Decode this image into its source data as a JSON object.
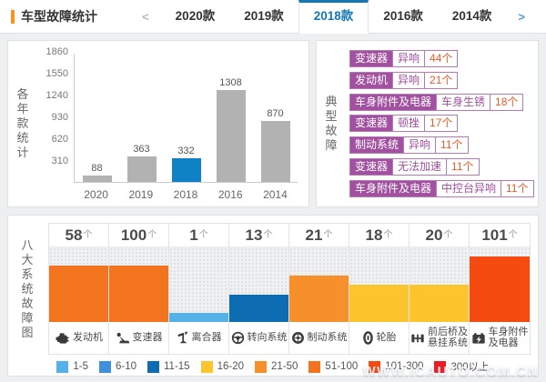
{
  "header": {
    "title": "车型故障统计",
    "prev_label": "<",
    "next_label": ">",
    "accent_color": "#1578b5",
    "tabs": [
      {
        "key": "2020",
        "label": "2020款",
        "active": false
      },
      {
        "key": "2019",
        "label": "2019款",
        "active": false
      },
      {
        "key": "2018",
        "label": "2018款",
        "active": true
      },
      {
        "key": "2016",
        "label": "2016款",
        "active": false
      },
      {
        "key": "2014",
        "label": "2014款",
        "active": false
      }
    ]
  },
  "yearly_panel": {
    "side_label": "各年款统计",
    "y_ticks": [
      310,
      620,
      930,
      1240,
      1550,
      1860
    ],
    "y_max": 1860,
    "bar_color": "#b2b2b2",
    "highlight_color": "#0e82c4",
    "bars": [
      {
        "year": "2020",
        "value": 88,
        "highlight": false
      },
      {
        "year": "2019",
        "value": 363,
        "highlight": false
      },
      {
        "year": "2018",
        "value": 332,
        "highlight": true
      },
      {
        "year": "2016",
        "value": 1308,
        "highlight": false
      },
      {
        "year": "2014",
        "value": 870,
        "highlight": false
      }
    ]
  },
  "typical_faults": {
    "side_label": "典型故障",
    "items": [
      {
        "system": "变速器",
        "fault": "异响",
        "count": "44个"
      },
      {
        "system": "发动机",
        "fault": "异响",
        "count": "21个"
      },
      {
        "system": "车身附件及电器",
        "fault": "车身生锈",
        "count": "18个"
      },
      {
        "system": "变速器",
        "fault": "顿挫",
        "count": "17个"
      },
      {
        "system": "制动系统",
        "fault": "异响",
        "count": "11个"
      },
      {
        "system": "变速器",
        "fault": "无法加速",
        "count": "11个"
      },
      {
        "system": "车身附件及电器",
        "fault": "中控台异响",
        "count": "11个"
      }
    ]
  },
  "systems_panel": {
    "side_label": "八大系统故障图",
    "unit": "个",
    "columns": [
      {
        "key": "engine",
        "count": 58,
        "bucket": "51-100",
        "icon": "engine-icon",
        "label_lines": [
          "发动机"
        ]
      },
      {
        "key": "transmission",
        "count": 100,
        "bucket": "51-100",
        "icon": "gear-shifter-icon",
        "label_lines": [
          "变速器"
        ]
      },
      {
        "key": "clutch",
        "count": 1,
        "bucket": "1-5",
        "icon": "clutch-pedal-icon",
        "label_lines": [
          "离合器"
        ]
      },
      {
        "key": "steering",
        "count": 13,
        "bucket": "11-15",
        "icon": "steering-wheel-icon",
        "label_lines": [
          "转向系统"
        ]
      },
      {
        "key": "braking",
        "count": 21,
        "bucket": "21-50",
        "icon": "brake-disc-icon",
        "label_lines": [
          "制动系统"
        ]
      },
      {
        "key": "tire",
        "count": 18,
        "bucket": "16-20",
        "icon": "tire-icon",
        "label_lines": [
          "轮胎"
        ]
      },
      {
        "key": "axle-suspension",
        "count": 20,
        "bucket": "16-20",
        "icon": "axle-suspension-icon",
        "label_lines": [
          "前后桥及",
          "悬挂系统"
        ]
      },
      {
        "key": "body-electrics",
        "count": 101,
        "bucket": "101-300",
        "icon": "battery-icon",
        "label_lines": [
          "车身附件",
          "及电器"
        ]
      }
    ],
    "legend": [
      {
        "label": "1-5",
        "color": "#55b2e8",
        "height": 10
      },
      {
        "label": "6-10",
        "color": "#3f8fdc",
        "height": 20
      },
      {
        "label": "11-15",
        "color": "#0d6cb2",
        "height": 30
      },
      {
        "label": "16-20",
        "color": "#fcc42d",
        "height": 41
      },
      {
        "label": "21-50",
        "color": "#f7902a",
        "height": 51
      },
      {
        "label": "51-100",
        "color": "#f2741f",
        "height": 62
      },
      {
        "label": "101-300",
        "color": "#f54a10",
        "height": 72
      },
      {
        "label": "300以上",
        "color": "#ec1c24",
        "height": 82
      }
    ]
  },
  "watermark": "WWW.ICAUTO.COM.CN",
  "chart_data": [
    {
      "type": "bar",
      "title": "各年款统计",
      "categories": [
        "2020",
        "2019",
        "2018",
        "2016",
        "2014"
      ],
      "values": [
        88,
        363,
        332,
        1308,
        870
      ],
      "highlighted_category": "2018",
      "xlabel": "",
      "ylabel": "",
      "yticks": [
        310,
        620,
        930,
        1240,
        1550,
        1860
      ],
      "ylim": [
        0,
        1860
      ],
      "grid": false,
      "bar_colors": [
        "#b2b2b2",
        "#b2b2b2",
        "#0e82c4",
        "#b2b2b2",
        "#b2b2b2"
      ]
    },
    {
      "type": "bar",
      "title": "八大系统故障图",
      "categories": [
        "发动机",
        "变速器",
        "离合器",
        "转向系统",
        "制动系统",
        "轮胎",
        "前后桥及悬挂系统",
        "车身附件及电器"
      ],
      "values": [
        58,
        100,
        1,
        13,
        21,
        18,
        20,
        101
      ],
      "value_unit": "个",
      "color_buckets": [
        "51-100",
        "51-100",
        "1-5",
        "11-15",
        "21-50",
        "16-20",
        "16-20",
        "101-300"
      ],
      "legend": [
        "1-5",
        "6-10",
        "11-15",
        "16-20",
        "21-50",
        "51-100",
        "101-300",
        "300以上"
      ],
      "legend_position": "bottom"
    }
  ]
}
